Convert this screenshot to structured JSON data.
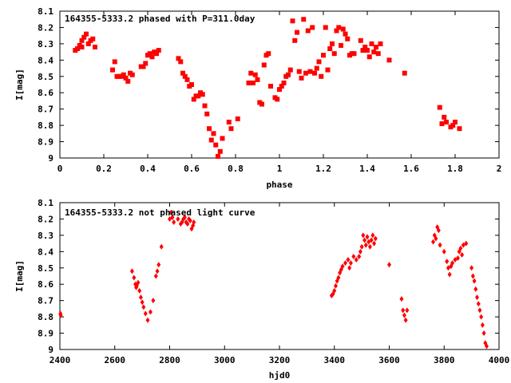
{
  "chart_data": [
    {
      "type": "scatter",
      "title": "164355-5333.2 phased with P=311.0day",
      "xlabel": "phase",
      "ylabel": "I[mag]",
      "xlim": [
        0,
        2
      ],
      "ylim": [
        8.1,
        9.0
      ],
      "y_inverted": true,
      "xticks": [
        "0",
        "0.2",
        "0.4",
        "0.6",
        "0.8",
        "1",
        "1.2",
        "1.4",
        "1.6",
        "1.8",
        "2"
      ],
      "yticks": [
        "8.1",
        "8.2",
        "8.3",
        "8.4",
        "8.5",
        "8.6",
        "8.7",
        "8.8",
        "8.9",
        "9"
      ],
      "grid": false,
      "marker_color": "#ff0000",
      "series": [
        {
          "x": [
            0.07,
            0.08,
            0.09,
            0.1,
            0.1,
            0.11,
            0.12,
            0.13,
            0.14,
            0.15,
            0.16,
            0.24,
            0.25,
            0.26,
            0.27,
            0.28,
            0.29,
            0.3,
            0.31,
            0.32,
            0.33,
            0.37,
            0.38,
            0.39,
            0.4,
            0.41,
            0.42,
            0.43,
            0.44,
            0.45,
            0.54,
            0.55,
            0.56,
            0.57,
            0.58,
            0.59,
            0.6,
            0.61,
            0.62,
            0.63,
            0.64,
            0.65,
            0.66,
            0.67,
            0.68,
            0.69,
            0.7,
            0.71,
            0.72,
            0.73,
            0.74,
            0.77,
            0.78,
            0.81,
            0.86,
            0.87,
            0.88,
            0.89,
            0.9,
            0.91,
            0.92,
            0.93,
            0.94,
            0.95,
            0.96,
            0.98,
            0.99,
            1.0,
            1.01,
            1.02,
            1.03,
            1.04,
            1.05,
            1.06,
            1.07,
            1.08,
            1.09,
            1.1,
            1.11,
            1.12,
            1.13,
            1.14,
            1.15,
            1.16,
            1.17,
            1.18,
            1.19,
            1.2,
            1.21,
            1.22,
            1.23,
            1.24,
            1.25,
            1.26,
            1.27,
            1.28,
            1.29,
            1.3,
            1.31,
            1.32,
            1.33,
            1.34,
            1.37,
            1.38,
            1.39,
            1.4,
            1.41,
            1.42,
            1.43,
            1.44,
            1.45,
            1.46,
            1.5,
            1.57,
            1.73,
            1.74,
            1.75,
            1.76,
            1.78,
            1.79,
            1.8,
            1.82
          ],
          "y": [
            8.34,
            8.33,
            8.31,
            8.28,
            8.32,
            8.26,
            8.24,
            8.3,
            8.28,
            8.27,
            8.32,
            8.46,
            8.41,
            8.5,
            8.5,
            8.5,
            8.49,
            8.51,
            8.53,
            8.48,
            8.49,
            8.44,
            8.44,
            8.42,
            8.37,
            8.36,
            8.38,
            8.35,
            8.36,
            8.34,
            8.39,
            8.41,
            8.48,
            8.5,
            8.52,
            8.56,
            8.55,
            8.64,
            8.62,
            8.62,
            8.6,
            8.61,
            8.68,
            8.73,
            8.82,
            8.89,
            8.85,
            8.92,
            8.99,
            8.96,
            8.88,
            8.78,
            8.82,
            8.76,
            8.54,
            8.48,
            8.54,
            8.49,
            8.52,
            8.66,
            8.67,
            8.43,
            8.37,
            8.36,
            8.56,
            8.63,
            8.64,
            8.58,
            8.56,
            8.54,
            8.5,
            8.49,
            8.46,
            8.16,
            8.28,
            8.23,
            8.47,
            8.51,
            8.15,
            8.48,
            8.22,
            8.47,
            8.2,
            8.48,
            8.45,
            8.41,
            8.5,
            8.37,
            8.2,
            8.46,
            8.33,
            8.3,
            8.36,
            8.22,
            8.2,
            8.31,
            8.21,
            8.24,
            8.27,
            8.37,
            8.36,
            8.36,
            8.28,
            8.34,
            8.32,
            8.34,
            8.38,
            8.3,
            8.35,
            8.32,
            8.36,
            8.3,
            8.4,
            8.48,
            8.69,
            8.79,
            8.75,
            8.78,
            8.81,
            8.8,
            8.78,
            8.82
          ]
        }
      ]
    },
    {
      "type": "scatter",
      "title": "164355-5333.2 not phased light curve",
      "xlabel": "hjd0",
      "ylabel": "I[mag]",
      "xlim": [
        2400,
        4000
      ],
      "ylim": [
        8.1,
        9.0
      ],
      "y_inverted": true,
      "xticks": [
        "2400",
        "2600",
        "2800",
        "3000",
        "3200",
        "3400",
        "3600",
        "3800",
        "4000"
      ],
      "yticks": [
        "8.1",
        "8.2",
        "8.3",
        "8.4",
        "8.5",
        "8.6",
        "8.7",
        "8.8",
        "8.9",
        "9"
      ],
      "grid": false,
      "marker_color": "#ff0000",
      "series": [
        {
          "x": [
            2402,
            2403,
            2663,
            2670,
            2675,
            2678,
            2680,
            2685,
            2690,
            2695,
            2700,
            2705,
            2712,
            2720,
            2730,
            2740,
            2750,
            2755,
            2760,
            2770,
            2800,
            2805,
            2810,
            2815,
            2830,
            2840,
            2845,
            2850,
            2855,
            2860,
            2865,
            2870,
            2875,
            2880,
            2885,
            2888,
            3390,
            3395,
            3400,
            3405,
            3410,
            3415,
            3420,
            3425,
            3430,
            3440,
            3450,
            3455,
            3460,
            3470,
            3480,
            3490,
            3495,
            3500,
            3505,
            3510,
            3515,
            3520,
            3525,
            3530,
            3535,
            3540,
            3545,
            3550,
            3600,
            3645,
            3650,
            3655,
            3660,
            3665,
            3760,
            3765,
            3770,
            3775,
            3780,
            3785,
            3800,
            3810,
            3815,
            3820,
            3825,
            3830,
            3840,
            3850,
            3855,
            3860,
            3865,
            3870,
            3880,
            3900,
            3905,
            3910,
            3915,
            3920,
            3925,
            3930,
            3935,
            3940,
            3945,
            3950,
            3955
          ],
          "y": [
            8.78,
            8.79,
            8.52,
            8.56,
            8.6,
            8.62,
            8.61,
            8.59,
            8.64,
            8.68,
            8.71,
            8.74,
            8.78,
            8.82,
            8.77,
            8.7,
            8.55,
            8.52,
            8.48,
            8.37,
            8.2,
            8.16,
            8.19,
            8.22,
            8.2,
            8.23,
            8.22,
            8.2,
            8.19,
            8.22,
            8.23,
            8.2,
            8.21,
            8.26,
            8.24,
            8.22,
            8.67,
            8.66,
            8.64,
            8.61,
            8.58,
            8.56,
            8.53,
            8.51,
            8.49,
            8.47,
            8.45,
            8.5,
            8.47,
            8.43,
            8.45,
            8.43,
            8.4,
            8.37,
            8.3,
            8.33,
            8.36,
            8.31,
            8.34,
            8.37,
            8.33,
            8.3,
            8.35,
            8.32,
            8.48,
            8.69,
            8.76,
            8.79,
            8.82,
            8.76,
            8.34,
            8.3,
            8.32,
            8.25,
            8.27,
            8.36,
            8.4,
            8.46,
            8.5,
            8.54,
            8.49,
            8.47,
            8.45,
            8.44,
            8.4,
            8.38,
            8.42,
            8.36,
            8.35,
            8.5,
            8.55,
            8.58,
            8.63,
            8.68,
            8.72,
            8.76,
            8.8,
            8.85,
            8.9,
            8.96,
            8.98
          ]
        }
      ]
    }
  ]
}
